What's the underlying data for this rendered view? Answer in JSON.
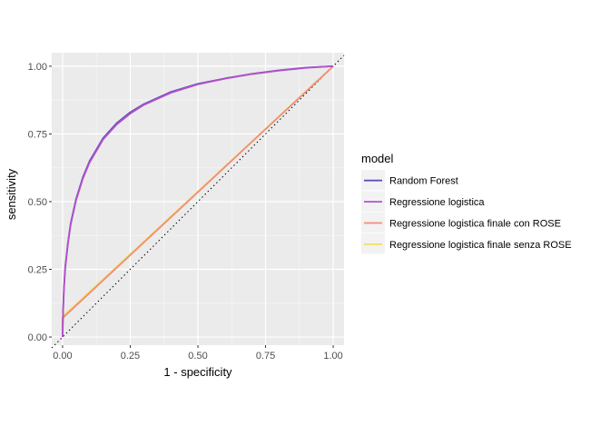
{
  "chart_data": {
    "type": "line",
    "title": "",
    "xlabel": "1 - specificity",
    "ylabel": "sensitivity",
    "xlim": [
      -0.04,
      1.04
    ],
    "ylim": [
      -0.03,
      1.05
    ],
    "x_ticks": [
      0.0,
      0.25,
      0.5,
      0.75,
      1.0
    ],
    "y_ticks": [
      0.0,
      0.25,
      0.5,
      0.75,
      1.0
    ],
    "x_tick_labels": [
      "0.00",
      "0.25",
      "0.50",
      "0.75",
      "1.00"
    ],
    "y_tick_labels": [
      "0.00",
      "0.25",
      "0.50",
      "0.75",
      "1.00"
    ],
    "grid": true,
    "legend": {
      "title": "model",
      "position": "right"
    },
    "reference_line": {
      "style": "dotted",
      "color": "#000000",
      "points": [
        [
          -0.04,
          -0.04
        ],
        [
          1.04,
          1.04
        ]
      ]
    },
    "series": [
      {
        "name": "Random Forest",
        "color": "#5b4fbf",
        "points": [
          [
            0,
            0
          ],
          [
            0.002,
            0.1
          ],
          [
            0.005,
            0.18
          ],
          [
            0.01,
            0.26
          ],
          [
            0.02,
            0.35
          ],
          [
            0.03,
            0.42
          ],
          [
            0.05,
            0.51
          ],
          [
            0.075,
            0.59
          ],
          [
            0.1,
            0.65
          ],
          [
            0.15,
            0.735
          ],
          [
            0.2,
            0.79
          ],
          [
            0.25,
            0.83
          ],
          [
            0.3,
            0.86
          ],
          [
            0.4,
            0.905
          ],
          [
            0.5,
            0.935
          ],
          [
            0.6,
            0.955
          ],
          [
            0.7,
            0.972
          ],
          [
            0.8,
            0.985
          ],
          [
            0.9,
            0.995
          ],
          [
            1.0,
            1.0
          ]
        ]
      },
      {
        "name": "Regressione logistica",
        "color": "#b451c9",
        "points": [
          [
            0,
            0
          ],
          [
            0.002,
            0.095
          ],
          [
            0.005,
            0.175
          ],
          [
            0.01,
            0.255
          ],
          [
            0.02,
            0.345
          ],
          [
            0.03,
            0.415
          ],
          [
            0.05,
            0.505
          ],
          [
            0.075,
            0.585
          ],
          [
            0.1,
            0.645
          ],
          [
            0.15,
            0.73
          ],
          [
            0.2,
            0.785
          ],
          [
            0.25,
            0.825
          ],
          [
            0.3,
            0.857
          ],
          [
            0.4,
            0.902
          ],
          [
            0.5,
            0.933
          ],
          [
            0.6,
            0.954
          ],
          [
            0.7,
            0.971
          ],
          [
            0.8,
            0.984
          ],
          [
            0.9,
            0.994
          ],
          [
            1.0,
            1.0
          ]
        ]
      },
      {
        "name": "Regressione logistica finale con ROSE",
        "color": "#f08e77",
        "points": [
          [
            0,
            0
          ],
          [
            0.0,
            0.07
          ],
          [
            1.0,
            1.0
          ]
        ]
      },
      {
        "name": "Regressione logistica finale senza ROSE",
        "color": "#f3e05b",
        "points": [
          [
            0,
            0
          ],
          [
            0.0,
            0.075
          ],
          [
            1.0,
            1.0
          ]
        ]
      }
    ]
  }
}
